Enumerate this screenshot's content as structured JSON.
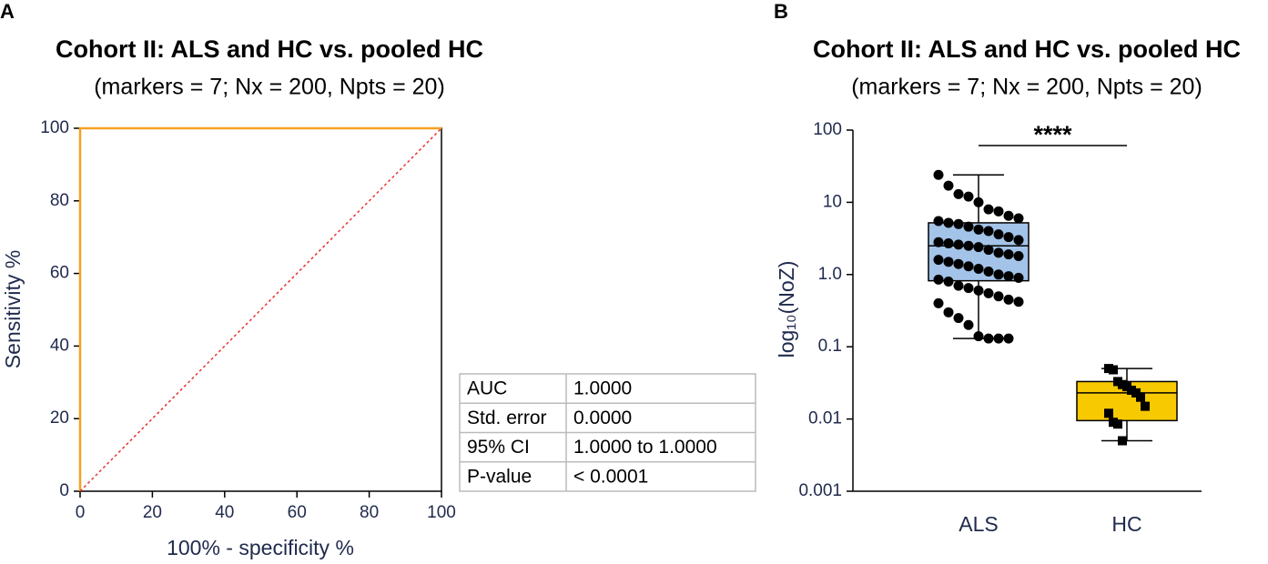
{
  "chart_data": [
    {
      "type": "line",
      "panel_label": "A",
      "title": "Cohort II: ALS and HC vs. pooled HC",
      "subtitle": "(markers = 7; Nx = 200, Npts = 20)",
      "xlabel": "100% - specificity %",
      "ylabel": "Sensitivity %",
      "xlim": [
        0,
        100
      ],
      "ylim": [
        0,
        100
      ],
      "xticks": [
        0,
        20,
        40,
        60,
        80,
        100
      ],
      "yticks": [
        0,
        20,
        40,
        60,
        80,
        100
      ],
      "series": [
        {
          "x": [
            0,
            0,
            100
          ],
          "values": [
            0,
            100,
            100
          ],
          "color": "#f5a122",
          "dash": false
        },
        {
          "x": [
            0,
            100
          ],
          "values": [
            0,
            100
          ],
          "color": "#e8322f",
          "dash": true
        }
      ],
      "stats_table": {
        "rows": [
          [
            "AUC",
            "1.0000"
          ],
          [
            "Std. error",
            "0.0000"
          ],
          [
            "95% CI",
            "1.0000 to 1.0000"
          ],
          [
            "P-value",
            "< 0.0001"
          ]
        ]
      }
    },
    {
      "type": "box",
      "panel_label": "B",
      "title": "Cohort II: ALS and HC vs. pooled HC",
      "subtitle": "(markers = 7; Nx = 200, Npts = 20)",
      "ylabel": "log₁₀(NoZ)",
      "log_scale": true,
      "ylim": [
        0.001,
        100
      ],
      "yticks": [
        0.001,
        0.01,
        0.1,
        {
          "value": 1,
          "label": "1.0"
        },
        10,
        100
      ],
      "categories": [
        "ALS",
        "HC"
      ],
      "boxes": [
        {
          "min": 0.13,
          "q1": 0.82,
          "median": 2.5,
          "q3": 5.2,
          "max": 24,
          "color": "#a3c4e8",
          "point_shape": "circle",
          "points": [
            24,
            17,
            13,
            12,
            10,
            8,
            7.5,
            6.5,
            6,
            5.5,
            5.2,
            5,
            4.6,
            4.2,
            4,
            3.6,
            3.3,
            3,
            2.8,
            2.7,
            2.6,
            2.5,
            2.4,
            2.2,
            2,
            1.9,
            1.8,
            1.6,
            1.5,
            1.4,
            1.3,
            1.2,
            1.1,
            1.0,
            0.95,
            0.9,
            0.85,
            0.8,
            0.7,
            0.65,
            0.6,
            0.55,
            0.5,
            0.45,
            0.42,
            0.4,
            0.3,
            0.25,
            0.2,
            0.14,
            0.13,
            0.13,
            0.13
          ]
        },
        {
          "min": 0.005,
          "q1": 0.0095,
          "median": 0.023,
          "q3": 0.033,
          "max": 0.05,
          "color": "#f7c900",
          "point_shape": "square",
          "points": [
            0.05,
            0.048,
            0.033,
            0.03,
            0.028,
            0.025,
            0.023,
            0.02,
            0.015,
            0.012,
            0.009,
            0.0085,
            0.005
          ]
        }
      ],
      "significance": "****"
    }
  ]
}
